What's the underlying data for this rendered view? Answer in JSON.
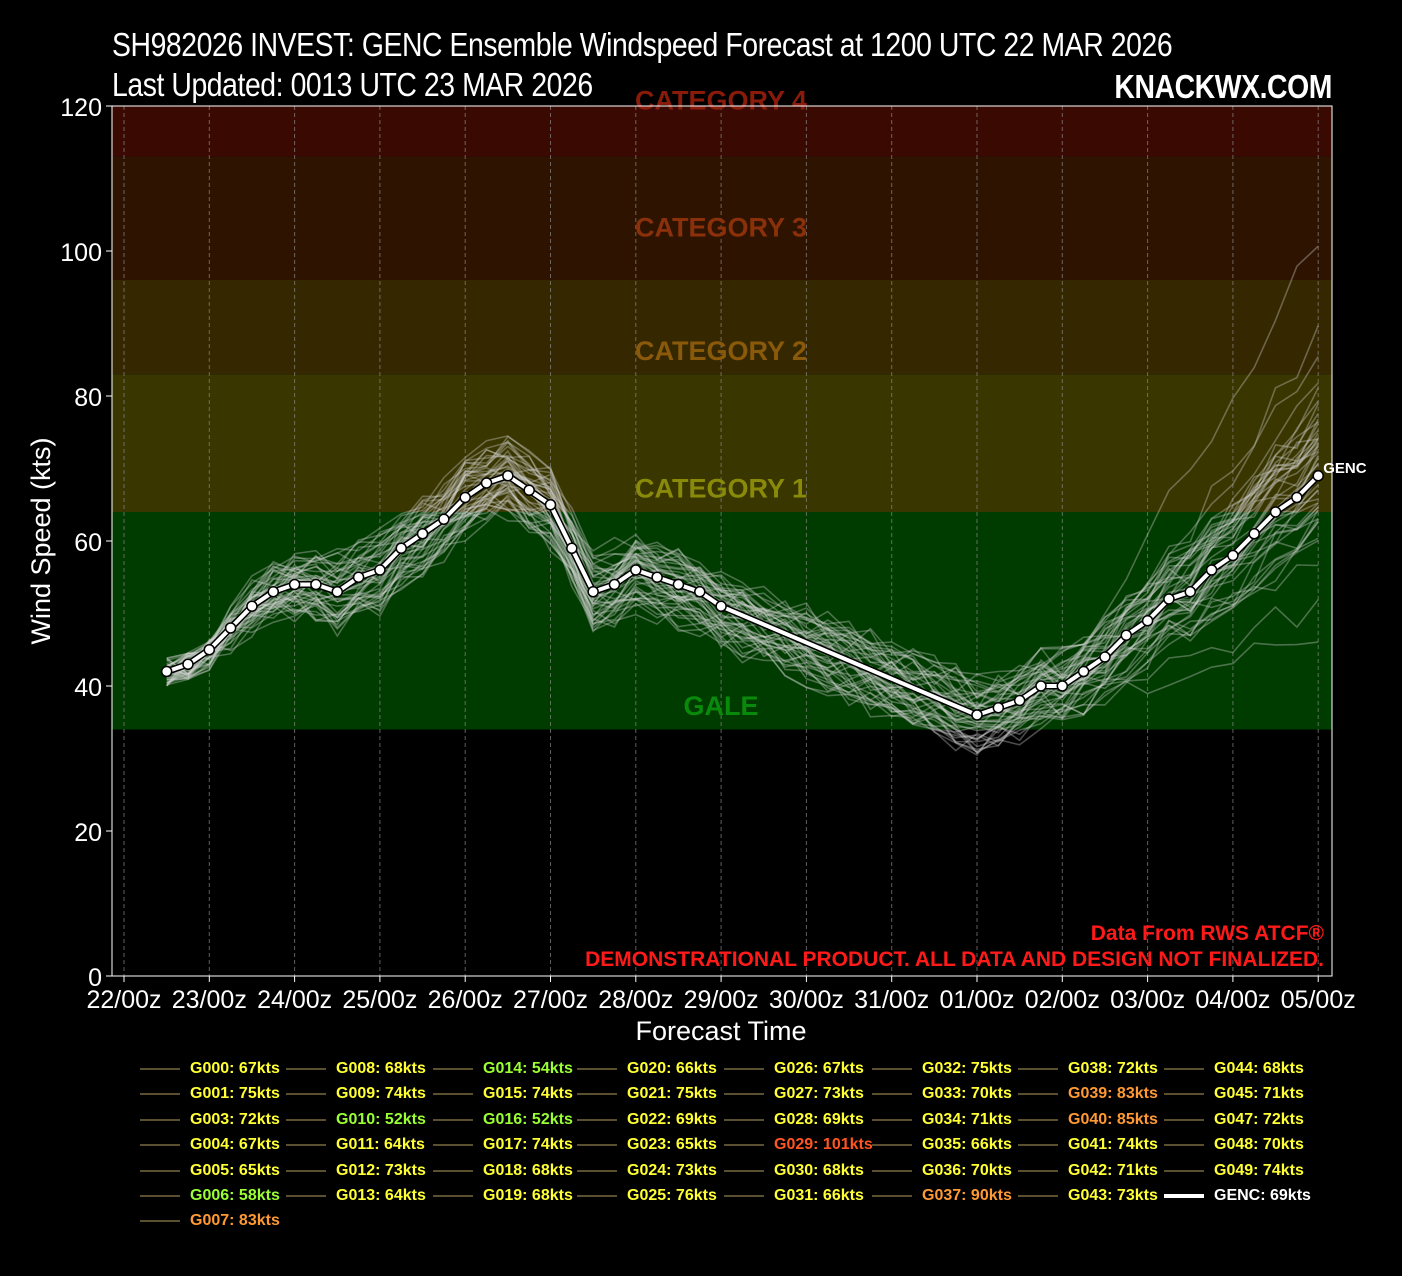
{
  "header": {
    "title_line1": "SH982026 INVEST: GENC Ensemble Windspeed Forecast at 1200 UTC 22 MAR 2026",
    "title_line2": "Last Updated: 0013 UTC 23 MAR 2026",
    "brand": "KNACKWX.COM"
  },
  "notes": {
    "source": "Data From RWS ATCF®",
    "disclaimer": "DEMONSTRATIONAL PRODUCT. ALL DATA AND DESIGN NOT FINALIZED."
  },
  "colors": {
    "background": "#000000",
    "gale_band": "#003b00",
    "cat1_band": "#393600",
    "cat2_band": "#352700",
    "cat3_band": "#2e1400",
    "cat4_band": "#3a0a02",
    "legend_yellow": "#ffff33",
    "legend_green": "#99ff33",
    "legend_orange": "#ff9933",
    "legend_red": "#ff5522"
  },
  "chart_data": {
    "type": "line",
    "xlabel": "Forecast Time",
    "ylabel": "Wind Speed (kts)",
    "ylim": [
      0,
      120
    ],
    "yticks": [
      0,
      20,
      40,
      60,
      80,
      100,
      120
    ],
    "xticks": [
      "22/00z",
      "23/00z",
      "24/00z",
      "25/00z",
      "26/00z",
      "27/00z",
      "28/00z",
      "29/00z",
      "30/00z",
      "31/00z",
      "01/00z",
      "02/00z",
      "03/00z",
      "04/00z",
      "05/00z"
    ],
    "grid": true,
    "intensity_bands": [
      {
        "label": "GALE",
        "from": 34,
        "to": 64
      },
      {
        "label": "CATEGORY 1",
        "from": 64,
        "to": 83
      },
      {
        "label": "CATEGORY 2",
        "from": 83,
        "to": 96
      },
      {
        "label": "CATEGORY 3",
        "from": 96,
        "to": 113
      },
      {
        "label": "CATEGORY 4",
        "from": 113,
        "to": 120
      }
    ],
    "genc_series": {
      "name": "GENC",
      "x_hours": [
        12,
        18,
        24,
        30,
        36,
        42,
        48,
        54,
        60,
        66,
        72,
        78,
        84,
        90,
        96,
        102,
        108,
        114,
        120,
        126,
        132,
        138,
        144,
        150,
        156,
        162,
        168,
        174,
        180,
        240,
        246,
        252,
        258,
        264,
        270,
        276,
        282,
        288,
        294,
        300,
        306,
        312,
        318,
        324,
        330,
        336
      ],
      "values": [
        42,
        43,
        45,
        48,
        51,
        53,
        54,
        54,
        53,
        55,
        56,
        59,
        61,
        63,
        66,
        68,
        69,
        67,
        65,
        59,
        53,
        54,
        56,
        55,
        54,
        53,
        51,
        null,
        null,
        36,
        37,
        38,
        40,
        40,
        42,
        44,
        47,
        49,
        52,
        53,
        56,
        58,
        61,
        64,
        66,
        69
      ]
    },
    "legend": [
      {
        "label": "G000: 67kts",
        "color": "yellow"
      },
      {
        "label": "G001: 75kts",
        "color": "yellow"
      },
      {
        "label": "G003: 72kts",
        "color": "yellow"
      },
      {
        "label": "G004: 67kts",
        "color": "yellow"
      },
      {
        "label": "G005: 65kts",
        "color": "yellow"
      },
      {
        "label": "G006: 58kts",
        "color": "green"
      },
      {
        "label": "G007: 83kts",
        "color": "orange"
      },
      {
        "label": "G008: 68kts",
        "color": "yellow"
      },
      {
        "label": "G009: 74kts",
        "color": "yellow"
      },
      {
        "label": "G010: 52kts",
        "color": "green"
      },
      {
        "label": "G011: 64kts",
        "color": "yellow"
      },
      {
        "label": "G012: 73kts",
        "color": "yellow"
      },
      {
        "label": "G013: 64kts",
        "color": "yellow"
      },
      {
        "label": "G014: 54kts",
        "color": "green"
      },
      {
        "label": "G015: 74kts",
        "color": "yellow"
      },
      {
        "label": "G016: 52kts",
        "color": "green"
      },
      {
        "label": "G017: 74kts",
        "color": "yellow"
      },
      {
        "label": "G018: 68kts",
        "color": "yellow"
      },
      {
        "label": "G019: 68kts",
        "color": "yellow"
      },
      {
        "label": "G020: 66kts",
        "color": "yellow"
      },
      {
        "label": "G021: 75kts",
        "color": "yellow"
      },
      {
        "label": "G022: 69kts",
        "color": "yellow"
      },
      {
        "label": "G023: 65kts",
        "color": "yellow"
      },
      {
        "label": "G024: 73kts",
        "color": "yellow"
      },
      {
        "label": "G025: 76kts",
        "color": "yellow"
      },
      {
        "label": "G026: 67kts",
        "color": "yellow"
      },
      {
        "label": "G027: 73kts",
        "color": "yellow"
      },
      {
        "label": "G028: 69kts",
        "color": "yellow"
      },
      {
        "label": "G029: 101kts",
        "color": "red"
      },
      {
        "label": "G030: 68kts",
        "color": "yellow"
      },
      {
        "label": "G031: 66kts",
        "color": "yellow"
      },
      {
        "label": "G032: 75kts",
        "color": "yellow"
      },
      {
        "label": "G033: 70kts",
        "color": "yellow"
      },
      {
        "label": "G034: 71kts",
        "color": "yellow"
      },
      {
        "label": "G035: 66kts",
        "color": "yellow"
      },
      {
        "label": "G036: 70kts",
        "color": "yellow"
      },
      {
        "label": "G037: 90kts",
        "color": "orange"
      },
      {
        "label": "G038: 72kts",
        "color": "yellow"
      },
      {
        "label": "G039: 83kts",
        "color": "orange"
      },
      {
        "label": "G040: 85kts",
        "color": "orange"
      },
      {
        "label": "G041: 74kts",
        "color": "yellow"
      },
      {
        "label": "G042: 71kts",
        "color": "yellow"
      },
      {
        "label": "G043: 73kts",
        "color": "yellow"
      },
      {
        "label": "G044: 68kts",
        "color": "yellow"
      },
      {
        "label": "G045: 71kts",
        "color": "yellow"
      },
      {
        "label": "G047: 72kts",
        "color": "yellow"
      },
      {
        "label": "G048: 70kts",
        "color": "yellow"
      },
      {
        "label": "G049: 74kts",
        "color": "yellow"
      },
      {
        "label": "GENC: 69kts",
        "color": "white"
      }
    ]
  }
}
